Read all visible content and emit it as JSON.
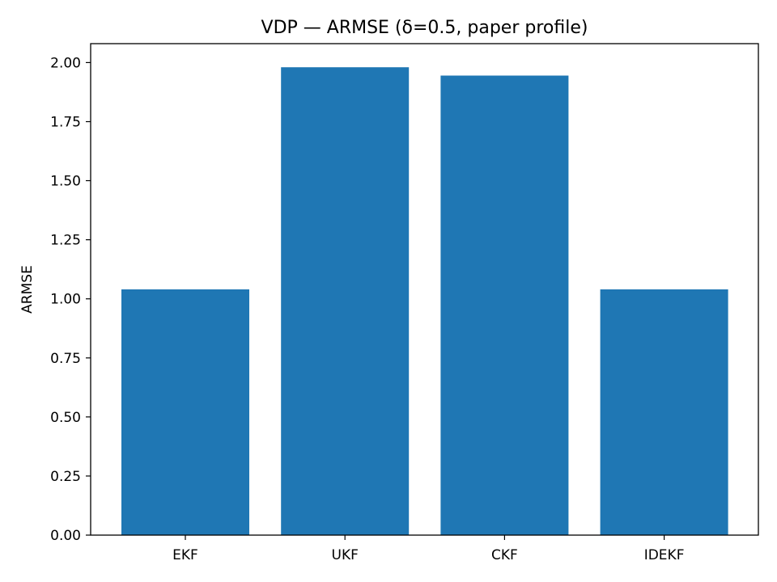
{
  "chart_data": {
    "type": "bar",
    "title": "VDP — ARMSE (δ=0.5, paper profile)",
    "xlabel": "",
    "ylabel": "ARMSE",
    "categories": [
      "EKF",
      "UKF",
      "CKF",
      "IDEKF"
    ],
    "values": [
      1.04,
      1.98,
      1.945,
      1.04
    ],
    "ylim": [
      0,
      2.08
    ],
    "yticks": [
      0.0,
      0.25,
      0.5,
      0.75,
      1.0,
      1.25,
      1.5,
      1.75,
      2.0
    ],
    "ytick_labels": [
      "0.00",
      "0.25",
      "0.50",
      "0.75",
      "1.00",
      "1.25",
      "1.50",
      "1.75",
      "2.00"
    ],
    "bar_color": "#1f77b4",
    "grid": false,
    "legend": "none"
  }
}
